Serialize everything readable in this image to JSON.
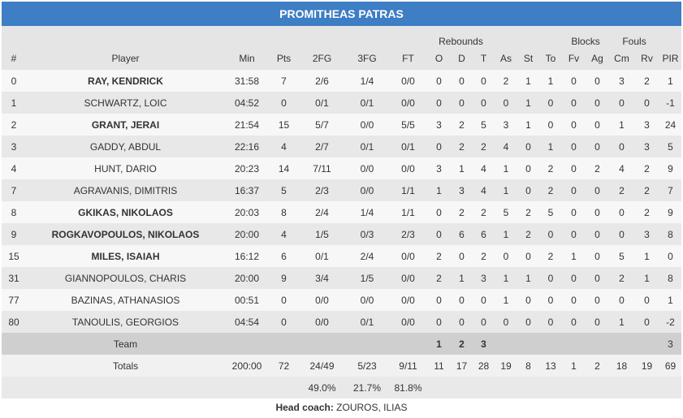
{
  "team_name": "PROMITHEAS PATRAS",
  "group_headers": {
    "rebounds": "Rebounds",
    "blocks": "Blocks",
    "fouls": "Fouls"
  },
  "columns": [
    "#",
    "Player",
    "Min",
    "Pts",
    "2FG",
    "3FG",
    "FT",
    "O",
    "D",
    "T",
    "As",
    "St",
    "To",
    "Fv",
    "Ag",
    "Cm",
    "Rv",
    "PIR"
  ],
  "players": [
    {
      "no": "0",
      "name": "RAY, KENDRICK",
      "starter": true,
      "min": "31:58",
      "pts": "7",
      "fg2": "2/6",
      "fg3": "1/4",
      "ft": "0/0",
      "o": "0",
      "d": "0",
      "t": "0",
      "as": "2",
      "st": "1",
      "to": "1",
      "fv": "0",
      "ag": "0",
      "cm": "3",
      "rv": "2",
      "pir": "1"
    },
    {
      "no": "1",
      "name": "SCHWARTZ, LOIC",
      "starter": false,
      "min": "04:52",
      "pts": "0",
      "fg2": "0/1",
      "fg3": "0/1",
      "ft": "0/0",
      "o": "0",
      "d": "0",
      "t": "0",
      "as": "0",
      "st": "1",
      "to": "0",
      "fv": "0",
      "ag": "0",
      "cm": "0",
      "rv": "0",
      "pir": "-1"
    },
    {
      "no": "2",
      "name": "GRANT, JERAI",
      "starter": true,
      "min": "21:54",
      "pts": "15",
      "fg2": "5/7",
      "fg3": "0/0",
      "ft": "5/5",
      "o": "3",
      "d": "2",
      "t": "5",
      "as": "3",
      "st": "1",
      "to": "0",
      "fv": "0",
      "ag": "0",
      "cm": "1",
      "rv": "3",
      "pir": "24"
    },
    {
      "no": "3",
      "name": "GADDY, ABDUL",
      "starter": false,
      "min": "22:16",
      "pts": "4",
      "fg2": "2/7",
      "fg3": "0/1",
      "ft": "0/1",
      "o": "0",
      "d": "2",
      "t": "2",
      "as": "4",
      "st": "0",
      "to": "1",
      "fv": "0",
      "ag": "0",
      "cm": "0",
      "rv": "3",
      "pir": "5"
    },
    {
      "no": "4",
      "name": "HUNT, DARIO",
      "starter": false,
      "min": "20:23",
      "pts": "14",
      "fg2": "7/11",
      "fg3": "0/0",
      "ft": "0/0",
      "o": "3",
      "d": "1",
      "t": "4",
      "as": "1",
      "st": "0",
      "to": "2",
      "fv": "0",
      "ag": "2",
      "cm": "4",
      "rv": "2",
      "pir": "9"
    },
    {
      "no": "7",
      "name": "AGRAVANIS, DIMITRIS",
      "starter": false,
      "min": "16:37",
      "pts": "5",
      "fg2": "2/3",
      "fg3": "0/0",
      "ft": "1/1",
      "o": "1",
      "d": "3",
      "t": "4",
      "as": "1",
      "st": "0",
      "to": "2",
      "fv": "0",
      "ag": "0",
      "cm": "2",
      "rv": "2",
      "pir": "7"
    },
    {
      "no": "8",
      "name": "GKIKAS, NIKOLAOS",
      "starter": true,
      "min": "20:03",
      "pts": "8",
      "fg2": "2/4",
      "fg3": "1/4",
      "ft": "1/1",
      "o": "0",
      "d": "2",
      "t": "2",
      "as": "5",
      "st": "2",
      "to": "5",
      "fv": "0",
      "ag": "0",
      "cm": "0",
      "rv": "2",
      "pir": "9"
    },
    {
      "no": "9",
      "name": "ROGKAVOPOULOS, NIKOLAOS",
      "starter": true,
      "min": "20:00",
      "pts": "4",
      "fg2": "1/5",
      "fg3": "0/3",
      "ft": "2/3",
      "o": "0",
      "d": "6",
      "t": "6",
      "as": "1",
      "st": "2",
      "to": "0",
      "fv": "0",
      "ag": "0",
      "cm": "0",
      "rv": "3",
      "pir": "8"
    },
    {
      "no": "15",
      "name": "MILES, ISAIAH",
      "starter": true,
      "min": "16:12",
      "pts": "6",
      "fg2": "0/1",
      "fg3": "2/4",
      "ft": "0/0",
      "o": "2",
      "d": "0",
      "t": "2",
      "as": "0",
      "st": "0",
      "to": "2",
      "fv": "1",
      "ag": "0",
      "cm": "5",
      "rv": "1",
      "pir": "0"
    },
    {
      "no": "31",
      "name": "GIANNOPOULOS, CHARIS",
      "starter": false,
      "min": "20:00",
      "pts": "9",
      "fg2": "3/4",
      "fg3": "1/5",
      "ft": "0/0",
      "o": "2",
      "d": "1",
      "t": "3",
      "as": "1",
      "st": "1",
      "to": "0",
      "fv": "0",
      "ag": "0",
      "cm": "2",
      "rv": "1",
      "pir": "8"
    },
    {
      "no": "77",
      "name": "BAZINAS, ATHANASIOS",
      "starter": false,
      "min": "00:51",
      "pts": "0",
      "fg2": "0/0",
      "fg3": "0/0",
      "ft": "0/0",
      "o": "0",
      "d": "0",
      "t": "0",
      "as": "1",
      "st": "0",
      "to": "0",
      "fv": "0",
      "ag": "0",
      "cm": "0",
      "rv": "0",
      "pir": "1"
    },
    {
      "no": "80",
      "name": "TANOULIS, GEORGIOS",
      "starter": false,
      "min": "04:54",
      "pts": "0",
      "fg2": "0/0",
      "fg3": "0/1",
      "ft": "0/0",
      "o": "0",
      "d": "0",
      "t": "0",
      "as": "0",
      "st": "0",
      "to": "0",
      "fv": "0",
      "ag": "0",
      "cm": "1",
      "rv": "0",
      "pir": "-2"
    }
  ],
  "team_row": {
    "label": "Team",
    "o": "1",
    "d": "2",
    "t": "3",
    "pir": "3"
  },
  "totals": {
    "label": "Totals",
    "min": "200:00",
    "pts": "72",
    "fg2": "24/49",
    "fg3": "5/23",
    "ft": "9/11",
    "o": "11",
    "d": "17",
    "t": "28",
    "as": "19",
    "st": "8",
    "to": "13",
    "fv": "1",
    "ag": "2",
    "cm": "18",
    "rv": "19",
    "pir": "69"
  },
  "percentages": {
    "fg2": "49.0%",
    "fg3": "21.7%",
    "ft": "81.8%"
  },
  "coach": {
    "label": "Head coach:",
    "name": "ZOUROS, ILIAS"
  },
  "colors": {
    "header_bar": "#3d7ec4"
  }
}
